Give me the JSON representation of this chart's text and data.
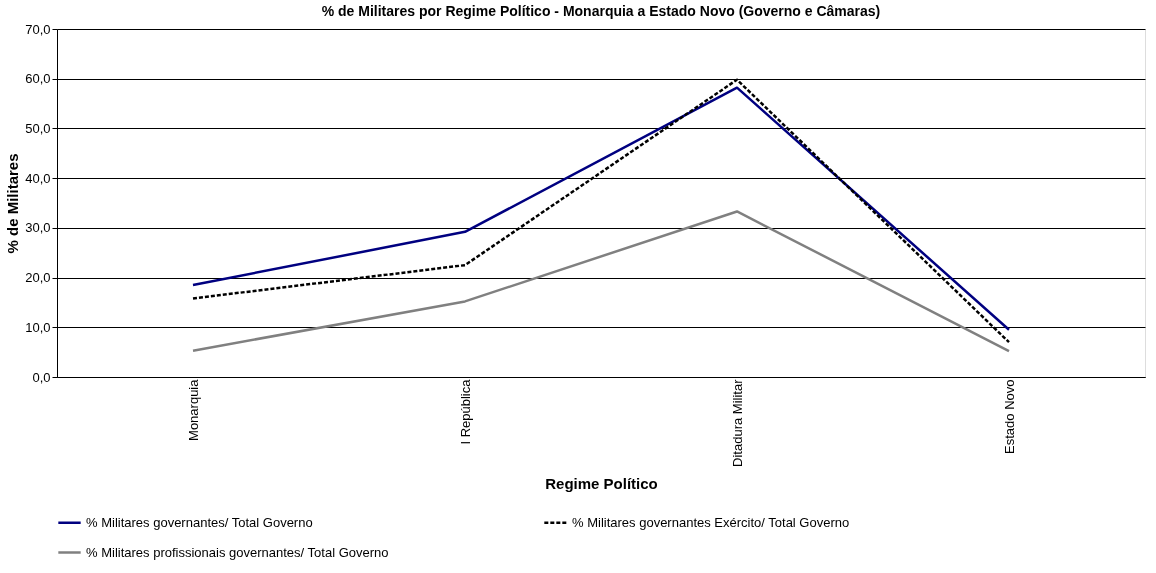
{
  "chart_data": {
    "type": "line",
    "title": "% de Militares por Regime Político - Monarquia a Estado Novo (Governo e Câmaras)",
    "xlabel": "Regime Político",
    "ylabel": "% de Militares",
    "categories": [
      "Monarquia",
      "I República",
      "Ditadura Militar",
      "Estado Novo"
    ],
    "series": [
      {
        "name": "% Militares governantes/ Total Governo",
        "color": "#000080",
        "line_style": "solid",
        "values": [
          18.5,
          29.2,
          58.2,
          9.5
        ]
      },
      {
        "name": "% Militares governantes Exército/ Total Governo",
        "color": "#000000",
        "line_style": "dashed",
        "values": [
          15.8,
          22.5,
          59.8,
          7.0
        ]
      },
      {
        "name": "% Militares profissionais governantes/ Total Governo",
        "color": "#808080",
        "line_style": "solid",
        "values": [
          5.3,
          15.2,
          33.3,
          5.2
        ]
      }
    ],
    "ylim": [
      0,
      70
    ],
    "yticks": [
      {
        "value": 0,
        "label": "0,0"
      },
      {
        "value": 10,
        "label": "10,0"
      },
      {
        "value": 20,
        "label": "20,0"
      },
      {
        "value": 30,
        "label": "30,0"
      },
      {
        "value": 40,
        "label": "40,0"
      },
      {
        "value": 50,
        "label": "50,0"
      },
      {
        "value": 60,
        "label": "60,0"
      },
      {
        "value": 70,
        "label": "70,0"
      }
    ],
    "grid": "y",
    "legend": "bottom",
    "marker": "none"
  }
}
